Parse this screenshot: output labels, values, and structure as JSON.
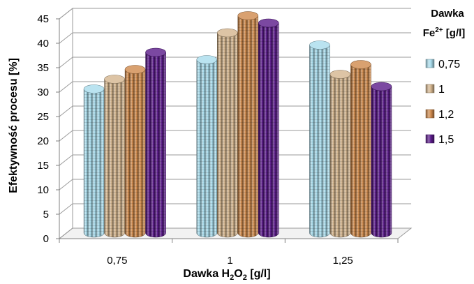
{
  "chart_data": {
    "type": "bar",
    "subtype": "3d-cylinder",
    "categories": [
      "0,75",
      "1",
      "1,25"
    ],
    "series": [
      {
        "name": "0,75",
        "color": "#a9dcec",
        "values": [
          29.5,
          35.5,
          38.5
        ]
      },
      {
        "name": "1",
        "color": "#d4b58e",
        "values": [
          31.5,
          41.0,
          32.5
        ]
      },
      {
        "name": "1,2",
        "color": "#d08a4c",
        "values": [
          33.5,
          44.5,
          34.5
        ]
      },
      {
        "name": "1,5",
        "color": "#5a1a8a",
        "values": [
          37.0,
          43.0,
          30.0
        ]
      }
    ],
    "ylim": [
      0,
      45
    ],
    "yticks": [
      "0",
      "5",
      "10",
      "15",
      "20",
      "25",
      "30",
      "35",
      "40",
      "45"
    ],
    "ylabel": "Efektywność procesu [%]",
    "xlabel": {
      "prefix": "Dawka H",
      "sub": "2",
      "mid": "O",
      "sub2": "2",
      "suffix": " [g/l]"
    },
    "legend": {
      "title_line1": "Dawka",
      "title_line2_prefix": "Fe",
      "title_line2_sup": "2+",
      "title_line2_suffix": " [g/l]",
      "position": "right"
    },
    "grid": true
  }
}
